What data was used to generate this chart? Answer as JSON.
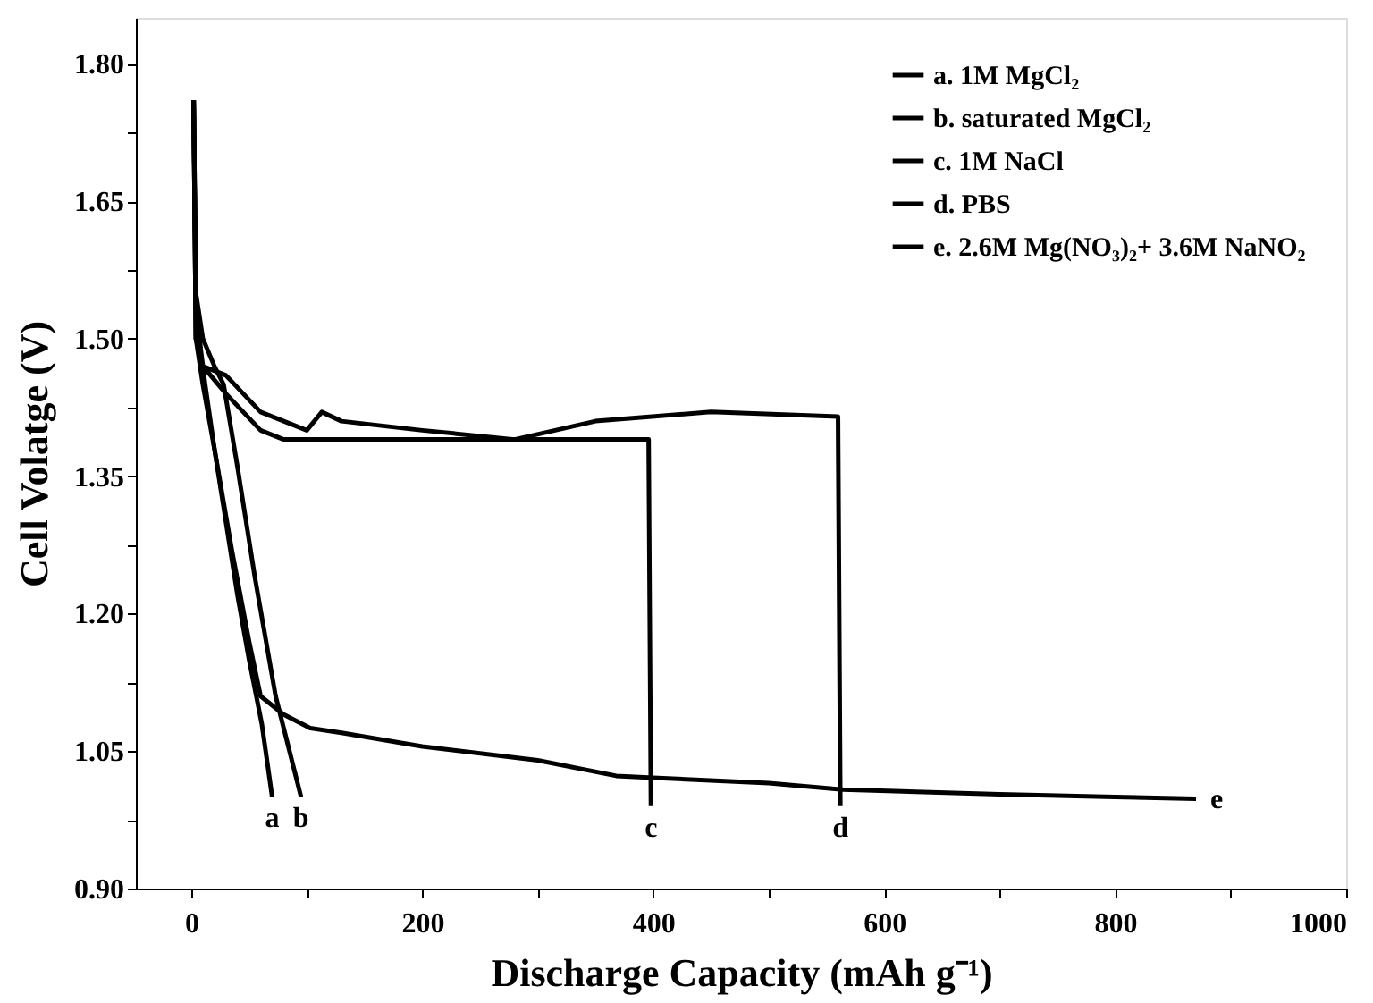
{
  "chart_data": {
    "type": "line",
    "xlabel": "Discharge Capacity (mAh g⁻¹)",
    "ylabel": "Cell Volatge (V)",
    "xlim": [
      -48,
      1000
    ],
    "ylim": [
      0.9,
      1.85
    ],
    "xticks": [
      0,
      {
        "value": 100,
        "label": null
      },
      200,
      {
        "value": 300,
        "label": null
      },
      400,
      {
        "value": 500,
        "label": null
      },
      600,
      {
        "value": 700,
        "label": null
      },
      800,
      {
        "value": 900,
        "label": null
      },
      1000
    ],
    "yticks": [
      {
        "value": 0.9,
        "label": "0.90"
      },
      {
        "value": 0.975,
        "label": null
      },
      {
        "value": 1.05,
        "label": "1.05"
      },
      {
        "value": 1.125,
        "label": null
      },
      {
        "value": 1.2,
        "label": "1.20"
      },
      {
        "value": 1.275,
        "label": null
      },
      {
        "value": 1.35,
        "label": "1.35"
      },
      {
        "value": 1.425,
        "label": null
      },
      {
        "value": 1.5,
        "label": "1.50"
      },
      {
        "value": 1.575,
        "label": null
      },
      {
        "value": 1.65,
        "label": "1.65"
      },
      {
        "value": 1.725,
        "label": null
      },
      {
        "value": 1.8,
        "label": "1.80"
      }
    ],
    "grid": false,
    "legend": "top right",
    "marker": "none",
    "line_style": "solid",
    "series": [
      {
        "name": "a. 1M MgCl₂",
        "color": "#000000",
        "x": [
          2,
          4,
          8,
          12,
          20,
          30,
          40,
          50,
          61,
          70
        ],
        "values": [
          1.76,
          1.55,
          1.49,
          1.45,
          1.38,
          1.3,
          1.22,
          1.15,
          1.08,
          1.0
        ]
      },
      {
        "name": "b. saturated MgCl₂",
        "color": "#000000",
        "x": [
          2,
          4,
          10,
          20,
          28,
          40,
          55,
          73,
          85,
          95
        ],
        "values": [
          1.76,
          1.55,
          1.5,
          1.47,
          1.45,
          1.36,
          1.24,
          1.11,
          1.05,
          1.0
        ]
      },
      {
        "name": "c. 1M NaCl",
        "color": "#000000",
        "x": [
          2,
          4,
          10,
          30,
          60,
          80,
          120,
          200,
          300,
          396,
          398
        ],
        "values": [
          1.76,
          1.5,
          1.47,
          1.44,
          1.4,
          1.39,
          1.39,
          1.39,
          1.39,
          1.39,
          0.99
        ]
      },
      {
        "name": "d. PBS",
        "color": "#000000",
        "x": [
          2,
          4,
          10,
          30,
          60,
          100,
          113,
          130,
          200,
          280,
          350,
          450,
          560,
          562
        ],
        "values": [
          1.76,
          1.5,
          1.47,
          1.46,
          1.42,
          1.4,
          1.42,
          1.41,
          1.4,
          1.39,
          1.41,
          1.42,
          1.415,
          0.99
        ]
      },
      {
        "name": "e. 2.6M Mg(NO₃)₂+ 3.6M NaNO₂",
        "color": "#000000",
        "x": [
          2,
          4,
          10,
          20,
          35,
          50,
          60,
          80,
          103,
          130,
          200,
          300,
          368,
          400,
          500,
          564,
          700,
          800,
          870
        ],
        "values": [
          1.76,
          1.5,
          1.45,
          1.38,
          1.27,
          1.17,
          1.11,
          1.09,
          1.075,
          1.07,
          1.055,
          1.04,
          1.023,
          1.021,
          1.015,
          1.008,
          1.003,
          1.0,
          0.998
        ]
      }
    ],
    "annotations": [
      {
        "text": "a",
        "x": 70,
        "y": 1.0
      },
      {
        "text": "b",
        "x": 95,
        "y": 1.0
      },
      {
        "text": "c",
        "x": 398,
        "y": 0.99
      },
      {
        "text": "d",
        "x": 562,
        "y": 0.99
      },
      {
        "text": "e",
        "x": 870,
        "y": 0.998
      }
    ]
  }
}
